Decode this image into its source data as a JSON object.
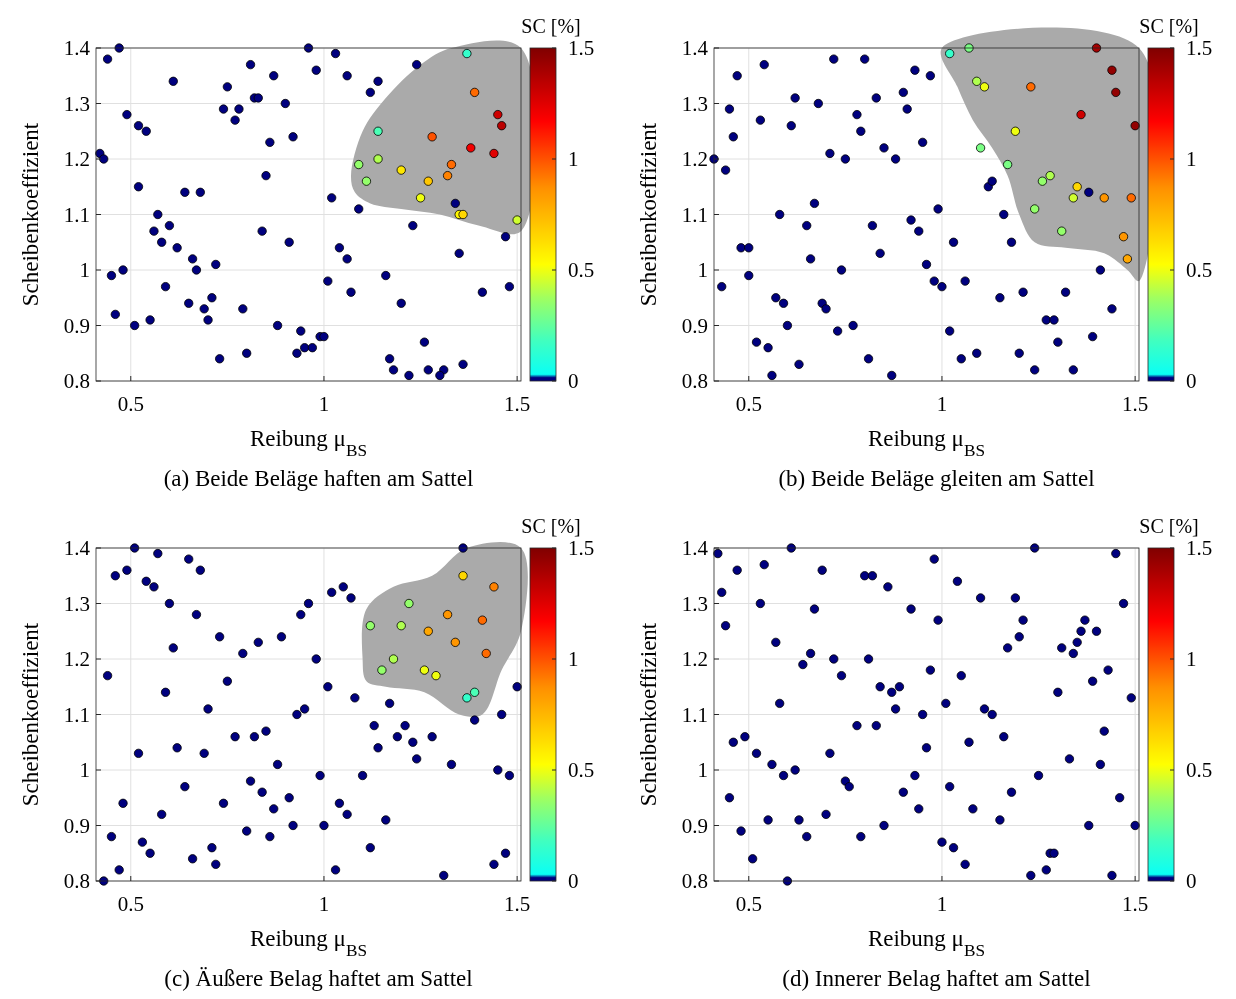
{
  "chart_data": [
    {
      "type": "scatter",
      "title": "(a) Beide Beläge haften am Sattel",
      "xlabel": "Reibung μ$_{BS}$",
      "ylabel": "Scheibenkoeffizient",
      "clabel": "SC [%]",
      "xlim": [
        0.41,
        1.51
      ],
      "ylim": [
        0.8,
        1.4
      ],
      "xticks": [
        0.5,
        1,
        1.5
      ],
      "yticks": [
        0.8,
        0.9,
        1,
        1.1,
        1.2,
        1.3,
        1.4
      ],
      "clim": [
        0,
        1.5
      ],
      "cticks": [
        0,
        0.5,
        1,
        1.5
      ],
      "grid": true,
      "marker": "circle",
      "series": [
        {
          "x": [
            0.44,
            0.47,
            0.42,
            0.43,
            0.45,
            0.48,
            0.46,
            0.51,
            0.49,
            0.52,
            0.54,
            0.52,
            0.61,
            0.64,
            0.68,
            0.57,
            0.56,
            0.6,
            0.58,
            0.62,
            0.66,
            0.67,
            0.59,
            0.55,
            0.65,
            0.69,
            0.7,
            0.71,
            0.72,
            0.73,
            0.74,
            0.75,
            0.77,
            0.78,
            0.81,
            0.82,
            0.83,
            0.87,
            0.9,
            0.86,
            0.92,
            0.85,
            0.84,
            0.79,
            0.8,
            0.88,
            0.91,
            0.94,
            0.93,
            0.95,
            0.97,
            0.99,
            1.0,
            0.96,
            0.98,
            1.03,
            1.06,
            1.02,
            1.01,
            1.04,
            1.06,
            1.07,
            1.09,
            1.12,
            1.14,
            1.16,
            1.17,
            1.18,
            1.2,
            1.22,
            1.23,
            1.24,
            1.26,
            1.27,
            1.31,
            1.3,
            1.36,
            1.35,
            1.41,
            1.47,
            1.48,
            1.34,
            1.37,
            1.14,
            1.09,
            1.11,
            1.14,
            1.2,
            1.25,
            1.27,
            1.28,
            1.32,
            1.33,
            1.39,
            1.38,
            1.44,
            1.45,
            1.46,
            1.35,
            1.36,
            1.5
          ],
          "values": [
            1.38,
            1.4,
            1.21,
            1.2,
            0.99,
            1.0,
            0.92,
            0.9,
            1.28,
            1.26,
            1.25,
            1.15,
            1.34,
            1.14,
            1.14,
            1.1,
            1.07,
            1.08,
            1.05,
            1.04,
            1.02,
            1.0,
            0.97,
            0.91,
            0.94,
            0.93,
            0.91,
            0.95,
            1.01,
            0.84,
            1.29,
            1.33,
            1.27,
            1.29,
            1.37,
            1.31,
            1.31,
            1.35,
            1.3,
            1.23,
            1.24,
            1.17,
            1.07,
            0.93,
            0.85,
            0.9,
            1.05,
            0.89,
            0.85,
            0.86,
            0.86,
            0.88,
            0.88,
            1.4,
            1.36,
            1.39,
            1.35,
            1.13,
            0.98,
            1.04,
            1.02,
            0.96,
            1.11,
            1.32,
            1.34,
            0.99,
            0.84,
            0.82,
            0.94,
            0.81,
            1.08,
            1.37,
            0.87,
            0.82,
            0.82,
            0.81,
            0.83,
            1.03,
            0.96,
            1.06,
            0.97,
            1.12,
            1.39,
            1.25,
            1.19,
            1.16,
            1.2,
            1.18,
            1.13,
            1.16,
            1.24,
            1.17,
            1.19,
            1.32,
            1.22,
            1.21,
            1.28,
            1.26,
            1.1,
            1.1,
            1.09
          ],
          "cvalues": [
            0,
            0,
            0,
            0,
            0,
            0,
            0,
            0,
            0,
            0,
            0,
            0,
            0,
            0,
            0,
            0,
            0,
            0,
            0,
            0,
            0,
            0,
            0,
            0,
            0,
            0,
            0,
            0,
            0,
            0,
            0,
            0,
            0,
            0,
            0,
            0,
            0,
            0,
            0,
            0,
            0,
            0,
            0,
            0,
            0,
            0,
            0,
            0,
            0,
            0,
            0,
            0,
            0,
            0,
            0,
            0,
            0,
            0,
            0,
            0,
            0,
            0,
            0,
            0,
            0,
            0,
            0,
            0,
            0,
            0,
            0,
            0,
            0,
            0,
            0,
            0,
            0,
            0,
            0,
            0,
            0,
            0,
            0.15,
            0.2,
            0.35,
            0.35,
            0.4,
            0.6,
            0.5,
            0.7,
            1.0,
            0.9,
            0.95,
            0.95,
            1.2,
            1.25,
            1.3,
            1.35,
            0.55,
            0.65,
            0.45
          ]
        }
      ]
    },
    {
      "type": "scatter",
      "title": "(b) Beide Beläge gleiten am Sattel",
      "xlabel": "Reibung μ$_{BS}$",
      "ylabel": "Scheibenkoeffizient",
      "clabel": "SC [%]",
      "xlim": [
        0.41,
        1.51
      ],
      "ylim": [
        0.8,
        1.4
      ],
      "xticks": [
        0.5,
        1,
        1.5
      ],
      "yticks": [
        0.8,
        0.9,
        1,
        1.1,
        1.2,
        1.3,
        1.4
      ],
      "clim": [
        0,
        1.5
      ],
      "cticks": [
        0,
        0.5,
        1,
        1.5
      ],
      "grid": true,
      "marker": "circle",
      "series": [
        {
          "x": [
            0.41,
            0.44,
            0.43,
            0.47,
            0.45,
            0.46,
            0.48,
            0.5,
            0.5,
            0.52,
            0.55,
            0.56,
            0.54,
            0.53,
            0.57,
            0.59,
            0.6,
            0.58,
            0.61,
            0.62,
            0.65,
            0.67,
            0.66,
            0.63,
            0.68,
            0.69,
            0.7,
            0.71,
            0.72,
            0.74,
            0.75,
            0.77,
            0.73,
            0.78,
            0.79,
            0.8,
            0.81,
            0.82,
            0.83,
            0.84,
            0.85,
            0.87,
            0.88,
            0.9,
            0.91,
            0.92,
            0.93,
            0.94,
            0.95,
            0.96,
            0.97,
            0.98,
            0.99,
            1.0,
            1.02,
            1.03,
            1.05,
            1.06,
            1.09,
            1.12,
            1.13,
            1.15,
            1.16,
            1.18,
            1.2,
            1.21,
            1.24,
            1.27,
            1.29,
            1.3,
            1.32,
            1.34,
            1.38,
            1.39,
            1.41,
            1.44,
            1.02,
            1.07,
            1.09,
            1.11,
            1.1,
            1.17,
            1.19,
            1.23,
            1.26,
            1.28,
            1.24,
            1.31,
            1.34,
            1.35,
            1.42,
            1.4,
            1.44,
            1.45,
            1.36,
            1.5,
            1.49,
            1.47,
            1.48
          ],
          "values": [
            1.2,
            1.18,
            0.97,
            1.35,
            1.29,
            1.24,
            1.04,
            1.04,
            0.99,
            0.87,
            0.86,
            0.81,
            1.37,
            1.27,
            0.95,
            0.94,
            0.9,
            1.1,
            1.26,
            1.31,
            1.08,
            1.12,
            1.02,
            0.83,
            1.3,
            0.94,
            0.93,
            1.21,
            1.38,
            1.0,
            1.2,
            0.9,
            0.89,
            1.28,
            1.25,
            1.38,
            0.84,
            1.08,
            1.31,
            1.03,
            1.22,
            0.81,
            1.2,
            1.32,
            1.29,
            1.09,
            1.36,
            1.07,
            1.23,
            1.01,
            1.35,
            0.98,
            1.11,
            0.97,
            0.89,
            1.05,
            0.84,
            0.98,
            0.85,
            1.15,
            1.16,
            0.95,
            1.1,
            1.05,
            0.85,
            0.96,
            0.82,
            0.91,
            0.91,
            0.87,
            0.96,
            0.82,
            1.14,
            0.88,
            1.0,
            0.93,
            1.39,
            1.4,
            1.34,
            1.33,
            1.22,
            1.19,
            1.25,
            1.33,
            1.16,
            1.17,
            1.11,
            1.07,
            1.13,
            1.15,
            1.13,
            1.4,
            1.36,
            1.32,
            1.28,
            1.26,
            1.13,
            1.06,
            1.02
          ],
          "cvalues": [
            0,
            0,
            0,
            0,
            0,
            0,
            0,
            0,
            0,
            0,
            0,
            0,
            0,
            0,
            0,
            0,
            0,
            0,
            0,
            0,
            0,
            0,
            0,
            0,
            0,
            0,
            0,
            0,
            0,
            0,
            0,
            0,
            0,
            0,
            0,
            0,
            0,
            0,
            0,
            0,
            0,
            0,
            0,
            0,
            0,
            0,
            0,
            0,
            0,
            0,
            0,
            0,
            0,
            0,
            0,
            0,
            0,
            0,
            0,
            0,
            0,
            0,
            0,
            0,
            0,
            0,
            0,
            0,
            0,
            0,
            0,
            0,
            0,
            0,
            0,
            0,
            0.15,
            0.3,
            0.4,
            0.5,
            0.3,
            0.3,
            0.5,
            0.95,
            0.35,
            0.4,
            0.35,
            0.35,
            0.45,
            0.65,
            0.85,
            1.4,
            1.45,
            1.45,
            1.3,
            1.45,
            0.95,
            0.85,
            0.8
          ]
        }
      ]
    },
    {
      "type": "scatter",
      "title": "(c) Äußere Belag haftet am Sattel",
      "xlabel": "Reibung μ$_{BS}$",
      "ylabel": "Scheibenkoeffizient",
      "clabel": "SC [%]",
      "xlim": [
        0.41,
        1.51
      ],
      "ylim": [
        0.8,
        1.4
      ],
      "xticks": [
        0.5,
        1,
        1.5
      ],
      "yticks": [
        0.8,
        0.9,
        1,
        1.1,
        1.2,
        1.3,
        1.4
      ],
      "clim": [
        0,
        1.5
      ],
      "cticks": [
        0,
        0.5,
        1,
        1.5
      ],
      "grid": true,
      "marker": "circle",
      "series": [
        {
          "x": [
            0.43,
            0.44,
            0.45,
            0.47,
            0.46,
            0.49,
            0.51,
            0.48,
            0.52,
            0.53,
            0.55,
            0.54,
            0.56,
            0.57,
            0.59,
            0.6,
            0.61,
            0.62,
            0.58,
            0.64,
            0.65,
            0.66,
            0.67,
            0.68,
            0.69,
            0.7,
            0.71,
            0.72,
            0.73,
            0.74,
            0.75,
            0.77,
            0.79,
            0.8,
            0.81,
            0.82,
            0.83,
            0.84,
            0.85,
            0.86,
            0.87,
            0.88,
            0.89,
            0.91,
            0.92,
            0.93,
            0.94,
            0.95,
            0.96,
            0.98,
            0.99,
            1.0,
            1.01,
            1.02,
            1.03,
            1.04,
            1.05,
            1.06,
            1.07,
            1.08,
            1.1,
            1.12,
            1.13,
            1.14,
            1.16,
            1.17,
            1.19,
            1.21,
            1.23,
            1.24,
            1.28,
            1.31,
            1.33,
            1.36,
            1.39,
            1.44,
            1.46,
            1.45,
            1.47,
            1.48,
            1.5,
            1.12,
            1.15,
            1.18,
            1.2,
            1.22,
            1.27,
            1.26,
            1.29,
            1.32,
            1.34,
            1.36,
            1.41,
            1.42,
            1.44,
            1.37,
            1.39
          ],
          "values": [
            0.8,
            1.17,
            0.88,
            0.82,
            1.35,
            1.36,
            1.4,
            0.94,
            1.03,
            0.87,
            0.85,
            1.34,
            1.33,
            1.39,
            1.14,
            1.3,
            1.22,
            1.04,
            0.92,
            0.97,
            1.38,
            0.84,
            1.28,
            1.36,
            1.03,
            1.11,
            0.86,
            0.83,
            1.24,
            0.94,
            1.16,
            1.06,
            1.21,
            0.89,
            0.98,
            1.06,
            1.23,
            0.96,
            1.07,
            0.88,
            0.93,
            1.01,
            1.24,
            0.95,
            0.9,
            1.1,
            1.28,
            1.11,
            1.3,
            1.2,
            0.99,
            0.9,
            1.15,
            1.32,
            0.82,
            0.94,
            1.33,
            0.92,
            1.31,
            1.13,
            0.99,
            0.86,
            1.08,
            1.04,
            0.91,
            1.12,
            1.06,
            1.08,
            1.05,
            1.02,
            1.06,
            0.81,
            1.01,
            1.4,
            1.09,
            0.83,
            1.1,
            1.0,
            0.85,
            0.99,
            1.15,
            1.26,
            1.18,
            1.2,
            1.26,
            1.3,
            1.25,
            1.18,
            1.17,
            1.28,
            1.23,
            1.35,
            1.27,
            1.21,
            1.33,
            1.13,
            1.14
          ],
          "cvalues": [
            0,
            0,
            0,
            0,
            0,
            0,
            0,
            0,
            0,
            0,
            0,
            0,
            0,
            0,
            0,
            0,
            0,
            0,
            0,
            0,
            0,
            0,
            0,
            0,
            0,
            0,
            0,
            0,
            0,
            0,
            0,
            0,
            0,
            0,
            0,
            0,
            0,
            0,
            0,
            0,
            0,
            0,
            0,
            0,
            0,
            0,
            0,
            0,
            0,
            0,
            0,
            0,
            0,
            0,
            0,
            0,
            0,
            0,
            0,
            0,
            0,
            0,
            0,
            0,
            0,
            0,
            0,
            0,
            0,
            0,
            0,
            0,
            0,
            0,
            0,
            0,
            0,
            0,
            0,
            0,
            0,
            0.35,
            0.35,
            0.4,
            0.4,
            0.35,
            0.8,
            0.5,
            0.5,
            0.85,
            0.85,
            0.65,
            0.95,
            0.95,
            0.9,
            0.15,
            0.2
          ]
        }
      ]
    },
    {
      "type": "scatter",
      "title": "(d) Innerer Belag haftet am Sattel",
      "xlabel": "Reibung μ$_{BS}$",
      "ylabel": "Scheibenkoeffizient",
      "clabel": "SC [%]",
      "xlim": [
        0.41,
        1.51
      ],
      "ylim": [
        0.8,
        1.4
      ],
      "xticks": [
        0.5,
        1,
        1.5
      ],
      "yticks": [
        0.8,
        0.9,
        1,
        1.1,
        1.2,
        1.3,
        1.4
      ],
      "clim": [
        0,
        1.5
      ],
      "cticks": [
        0,
        0.5,
        1,
        1.5
      ],
      "grid": true,
      "marker": "circle",
      "series": [
        {
          "x": [
            0.42,
            0.43,
            0.44,
            0.45,
            0.46,
            0.47,
            0.48,
            0.49,
            0.51,
            0.52,
            0.53,
            0.54,
            0.55,
            0.56,
            0.57,
            0.58,
            0.59,
            0.6,
            0.61,
            0.62,
            0.63,
            0.64,
            0.65,
            0.66,
            0.67,
            0.69,
            0.7,
            0.71,
            0.72,
            0.74,
            0.75,
            0.76,
            0.78,
            0.79,
            0.8,
            0.81,
            0.82,
            0.83,
            0.84,
            0.85,
            0.86,
            0.87,
            0.88,
            0.89,
            0.9,
            0.92,
            0.93,
            0.94,
            0.95,
            0.96,
            0.97,
            0.98,
            0.99,
            1.0,
            1.01,
            1.02,
            1.03,
            1.04,
            1.05,
            1.06,
            1.07,
            1.08,
            1.1,
            1.11,
            1.13,
            1.15,
            1.16,
            1.17,
            1.18,
            1.19,
            1.2,
            1.21,
            1.23,
            1.24,
            1.25,
            1.27,
            1.28,
            1.29,
            1.3,
            1.31,
            1.33,
            1.34,
            1.35,
            1.36,
            1.37,
            1.38,
            1.39,
            1.4,
            1.41,
            1.42,
            1.43,
            1.44,
            1.45,
            1.46,
            1.47,
            1.49,
            1.5
          ],
          "values": [
            1.39,
            1.32,
            1.26,
            0.95,
            1.05,
            1.36,
            0.89,
            1.06,
            0.84,
            1.03,
            1.3,
            1.37,
            0.91,
            1.01,
            1.23,
            1.12,
            0.99,
            0.8,
            1.4,
            1.0,
            0.91,
            1.19,
            0.88,
            1.21,
            1.29,
            1.36,
            0.92,
            1.03,
            1.2,
            1.17,
            0.98,
            0.97,
            1.08,
            0.88,
            1.35,
            1.2,
            1.35,
            1.08,
            1.15,
            0.9,
            1.33,
            1.14,
            1.11,
            1.15,
            0.96,
            1.29,
            0.99,
            0.93,
            1.1,
            1.04,
            1.18,
            1.38,
            1.27,
            0.87,
            1.12,
            0.97,
            0.86,
            1.34,
            1.17,
            0.83,
            1.05,
            0.93,
            1.31,
            1.11,
            1.1,
            0.91,
            1.06,
            1.22,
            0.96,
            1.31,
            1.24,
            1.27,
            0.81,
            1.4,
            0.99,
            0.82,
            0.85,
            0.85,
            1.14,
            1.22,
            1.02,
            1.21,
            1.23,
            1.25,
            1.27,
            0.9,
            1.16,
            1.25,
            1.01,
            1.07,
            1.18,
            0.81,
            1.39,
            0.95,
            1.3,
            1.13,
            0.9
          ],
          "cvalues": [
            0,
            0,
            0,
            0,
            0,
            0,
            0,
            0,
            0,
            0,
            0,
            0,
            0,
            0,
            0,
            0,
            0,
            0,
            0,
            0,
            0,
            0,
            0,
            0,
            0,
            0,
            0,
            0,
            0,
            0,
            0,
            0,
            0,
            0,
            0,
            0,
            0,
            0,
            0,
            0,
            0,
            0,
            0,
            0,
            0,
            0,
            0,
            0,
            0,
            0,
            0,
            0,
            0,
            0,
            0,
            0,
            0,
            0,
            0,
            0,
            0,
            0,
            0,
            0,
            0,
            0,
            0,
            0,
            0,
            0,
            0,
            0,
            0,
            0,
            0,
            0,
            0,
            0,
            0,
            0,
            0,
            0,
            0,
            0,
            0,
            0,
            0,
            0,
            0,
            0,
            0,
            0,
            0,
            0,
            0,
            0,
            0
          ]
        }
      ]
    }
  ]
}
